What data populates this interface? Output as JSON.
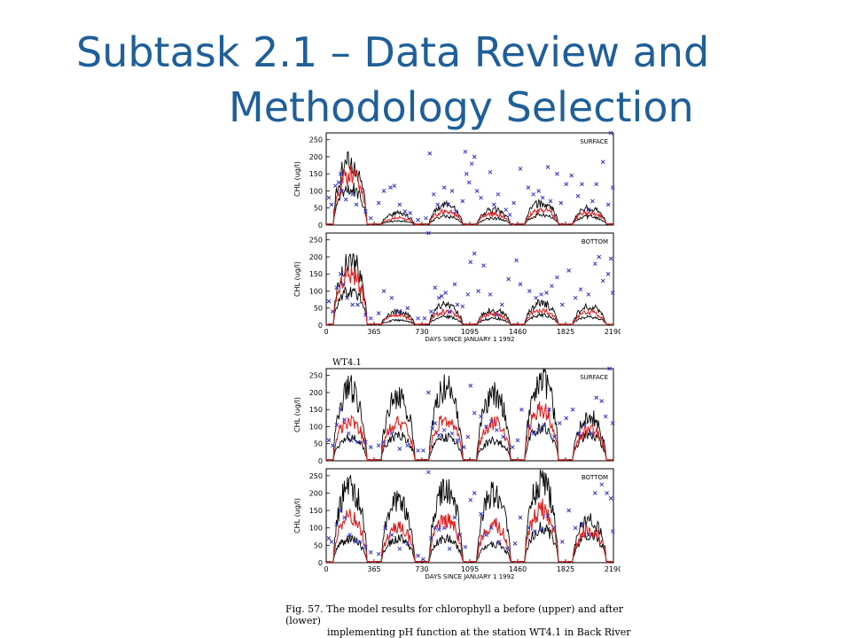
{
  "slide": {
    "title_line1": "Subtask 2.1 – Data Review and",
    "title_line2": "Methodology Selection",
    "caption_line1": "Fig. 57. The model results for chlorophyll a before (upper) and after (lower)",
    "caption_line2": "implementing pH function at the station WT4.1 in Back River"
  },
  "chart_data": [
    {
      "type": "line",
      "group": "before",
      "panel_label": "SURFACE",
      "ylabel": "CHL (ug/l)",
      "ylim": [
        0,
        270
      ],
      "yticks": [
        0,
        50,
        100,
        150,
        200,
        250
      ],
      "xlim": [
        0,
        2190
      ],
      "xticks": [
        0,
        365,
        730,
        1095,
        1460,
        1825,
        2190
      ],
      "tick_labels_shown": false,
      "colors": {
        "mean": "#e02020",
        "envelope": "#000000",
        "observed": "#3333cc"
      },
      "annual_peaks": {
        "max": [
          190,
          35,
          60,
          45,
          65,
          50
        ],
        "mean": [
          150,
          22,
          40,
          32,
          45,
          38
        ],
        "min": [
          110,
          12,
          25,
          20,
          30,
          25
        ]
      },
      "observations": [
        [
          20,
          80
        ],
        [
          40,
          60
        ],
        [
          70,
          115
        ],
        [
          95,
          125
        ],
        [
          110,
          150
        ],
        [
          120,
          100
        ],
        [
          150,
          75
        ],
        [
          200,
          90
        ],
        [
          230,
          60
        ],
        [
          300,
          40
        ],
        [
          340,
          20
        ],
        [
          400,
          65
        ],
        [
          440,
          100
        ],
        [
          490,
          110
        ],
        [
          520,
          115
        ],
        [
          560,
          60
        ],
        [
          600,
          40
        ],
        [
          640,
          35
        ],
        [
          700,
          15
        ],
        [
          760,
          20
        ],
        [
          790,
          210
        ],
        [
          820,
          90
        ],
        [
          850,
          60
        ],
        [
          900,
          110
        ],
        [
          930,
          60
        ],
        [
          960,
          100
        ],
        [
          990,
          40
        ],
        [
          1040,
          70
        ],
        [
          1060,
          215
        ],
        [
          1070,
          150
        ],
        [
          1090,
          125
        ],
        [
          1110,
          180
        ],
        [
          1130,
          200
        ],
        [
          1150,
          100
        ],
        [
          1180,
          80
        ],
        [
          1250,
          155
        ],
        [
          1280,
          60
        ],
        [
          1310,
          90
        ],
        [
          1370,
          45
        ],
        [
          1400,
          30
        ],
        [
          1430,
          65
        ],
        [
          1480,
          165
        ],
        [
          1540,
          110
        ],
        [
          1580,
          90
        ],
        [
          1620,
          100
        ],
        [
          1650,
          80
        ],
        [
          1690,
          170
        ],
        [
          1710,
          70
        ],
        [
          1760,
          150
        ],
        [
          1790,
          65
        ],
        [
          1830,
          120
        ],
        [
          1870,
          145
        ],
        [
          1920,
          85
        ],
        [
          1950,
          120
        ],
        [
          2000,
          45
        ],
        [
          2030,
          70
        ],
        [
          2060,
          120
        ],
        [
          2110,
          185
        ],
        [
          2150,
          60
        ],
        [
          2170,
          270
        ],
        [
          2185,
          110
        ]
      ]
    },
    {
      "type": "line",
      "group": "before",
      "panel_label": "BOTTOM",
      "ylabel": "CHL (ug/l)",
      "ylim": [
        0,
        270
      ],
      "yticks": [
        0,
        50,
        100,
        150,
        200,
        250
      ],
      "xlim": [
        0,
        2190
      ],
      "xticks": [
        0,
        365,
        730,
        1095,
        1460,
        1825,
        2190
      ],
      "xtick_labels": [
        "0",
        "365",
        "730",
        "1095",
        "1460",
        "1825",
        "2190"
      ],
      "xlabel": "DAYS SINCE JANUARY 1 1992",
      "colors": {
        "mean": "#e02020",
        "envelope": "#000000",
        "observed": "#3333cc"
      },
      "annual_peaks": {
        "max": [
          195,
          40,
          60,
          45,
          65,
          55
        ],
        "mean": [
          150,
          28,
          40,
          32,
          45,
          38
        ],
        "min": [
          105,
          15,
          25,
          20,
          30,
          25
        ]
      },
      "observations": [
        [
          20,
          70
        ],
        [
          50,
          40
        ],
        [
          80,
          110
        ],
        [
          110,
          150
        ],
        [
          130,
          120
        ],
        [
          160,
          80
        ],
        [
          200,
          60
        ],
        [
          240,
          60
        ],
        [
          300,
          30
        ],
        [
          340,
          20
        ],
        [
          400,
          35
        ],
        [
          440,
          100
        ],
        [
          500,
          80
        ],
        [
          560,
          40
        ],
        [
          620,
          50
        ],
        [
          700,
          20
        ],
        [
          750,
          20
        ],
        [
          780,
          270
        ],
        [
          800,
          40
        ],
        [
          830,
          110
        ],
        [
          860,
          80
        ],
        [
          880,
          85
        ],
        [
          910,
          95
        ],
        [
          940,
          40
        ],
        [
          980,
          120
        ],
        [
          1000,
          60
        ],
        [
          1040,
          55
        ],
        [
          1080,
          90
        ],
        [
          1100,
          185
        ],
        [
          1130,
          210
        ],
        [
          1160,
          100
        ],
        [
          1200,
          175
        ],
        [
          1250,
          90
        ],
        [
          1300,
          30
        ],
        [
          1340,
          60
        ],
        [
          1390,
          135
        ],
        [
          1450,
          190
        ],
        [
          1480,
          120
        ],
        [
          1550,
          100
        ],
        [
          1600,
          80
        ],
        [
          1640,
          90
        ],
        [
          1680,
          95
        ],
        [
          1720,
          115
        ],
        [
          1760,
          140
        ],
        [
          1800,
          60
        ],
        [
          1850,
          160
        ],
        [
          1900,
          80
        ],
        [
          1940,
          105
        ],
        [
          2000,
          90
        ],
        [
          2050,
          180
        ],
        [
          2080,
          200
        ],
        [
          2110,
          130
        ],
        [
          2150,
          150
        ],
        [
          2170,
          195
        ],
        [
          2185,
          95
        ]
      ]
    },
    {
      "type": "line",
      "group": "after",
      "station_label": "WT4.1",
      "panel_label": "SURFACE",
      "ylabel": "CHL (ug/l)",
      "ylim": [
        0,
        270
      ],
      "yticks": [
        0,
        50,
        100,
        150,
        200,
        250
      ],
      "xlim": [
        0,
        2190
      ],
      "xticks": [
        0,
        365,
        730,
        1095,
        1460,
        1825,
        2190
      ],
      "tick_labels_shown": false,
      "colors": {
        "mean": "#e02020",
        "envelope": "#000000",
        "observed": "#3333cc"
      },
      "annual_peaks": {
        "max": [
          210,
          190,
          215,
          200,
          235,
          130,
          165
        ],
        "mean": [
          120,
          110,
          120,
          110,
          155,
          95,
          120
        ],
        "min": [
          70,
          75,
          70,
          60,
          100,
          80,
          90
        ]
      },
      "observations": [
        [
          20,
          60
        ],
        [
          50,
          45
        ],
        [
          80,
          105
        ],
        [
          110,
          150
        ],
        [
          140,
          120
        ],
        [
          170,
          80
        ],
        [
          190,
          60
        ],
        [
          240,
          55
        ],
        [
          300,
          55
        ],
        [
          340,
          40
        ],
        [
          400,
          45
        ],
        [
          440,
          55
        ],
        [
          500,
          80
        ],
        [
          560,
          35
        ],
        [
          620,
          45
        ],
        [
          700,
          30
        ],
        [
          740,
          30
        ],
        [
          780,
          200
        ],
        [
          810,
          95
        ],
        [
          830,
          110
        ],
        [
          860,
          75
        ],
        [
          900,
          90
        ],
        [
          960,
          80
        ],
        [
          1000,
          60
        ],
        [
          1050,
          40
        ],
        [
          1080,
          70
        ],
        [
          1100,
          220
        ],
        [
          1130,
          140
        ],
        [
          1180,
          130
        ],
        [
          1220,
          100
        ],
        [
          1260,
          115
        ],
        [
          1300,
          90
        ],
        [
          1350,
          70
        ],
        [
          1420,
          40
        ],
        [
          1460,
          60
        ],
        [
          1490,
          150
        ],
        [
          1540,
          100
        ],
        [
          1580,
          80
        ],
        [
          1620,
          90
        ],
        [
          1660,
          105
        ],
        [
          1700,
          150
        ],
        [
          1740,
          70
        ],
        [
          1780,
          110
        ],
        [
          1830,
          125
        ],
        [
          1880,
          150
        ],
        [
          1930,
          80
        ],
        [
          1970,
          105
        ],
        [
          2020,
          80
        ],
        [
          2060,
          185
        ],
        [
          2100,
          175
        ],
        [
          2130,
          130
        ],
        [
          2160,
          270
        ],
        [
          2185,
          110
        ]
      ]
    },
    {
      "type": "line",
      "group": "after",
      "panel_label": "BOTTOM",
      "ylabel": "CHL (ug/l)",
      "ylim": [
        0,
        270
      ],
      "yticks": [
        0,
        50,
        100,
        150,
        200,
        250
      ],
      "xlim": [
        0,
        2190
      ],
      "xticks": [
        0,
        365,
        730,
        1095,
        1460,
        1825,
        2190
      ],
      "xtick_labels": [
        "0",
        "365",
        "730",
        "1095",
        "1460",
        "1825",
        "2190"
      ],
      "xlabel": "DAYS SINCE JANUARY 1 1992",
      "colors": {
        "mean": "#e02020",
        "envelope": "#000000",
        "observed": "#3333cc"
      },
      "annual_peaks": {
        "max": [
          220,
          180,
          215,
          200,
          230,
          125,
          165
        ],
        "mean": [
          130,
          105,
          125,
          110,
          155,
          95,
          120
        ],
        "min": [
          70,
          70,
          70,
          55,
          100,
          80,
          90
        ]
      },
      "observations": [
        [
          20,
          70
        ],
        [
          40,
          60
        ],
        [
          80,
          110
        ],
        [
          110,
          150
        ],
        [
          140,
          130
        ],
        [
          180,
          80
        ],
        [
          220,
          60
        ],
        [
          260,
          60
        ],
        [
          300,
          45
        ],
        [
          340,
          30
        ],
        [
          400,
          25
        ],
        [
          450,
          100
        ],
        [
          500,
          80
        ],
        [
          560,
          40
        ],
        [
          620,
          55
        ],
        [
          700,
          20
        ],
        [
          740,
          10
        ],
        [
          780,
          260
        ],
        [
          800,
          70
        ],
        [
          830,
          100
        ],
        [
          860,
          95
        ],
        [
          900,
          100
        ],
        [
          940,
          40
        ],
        [
          980,
          130
        ],
        [
          1020,
          80
        ],
        [
          1060,
          45
        ],
        [
          1100,
          180
        ],
        [
          1130,
          200
        ],
        [
          1180,
          140
        ],
        [
          1220,
          80
        ],
        [
          1260,
          100
        ],
        [
          1320,
          60
        ],
        [
          1380,
          40
        ],
        [
          1440,
          55
        ],
        [
          1480,
          130
        ],
        [
          1540,
          100
        ],
        [
          1590,
          90
        ],
        [
          1640,
          95
        ],
        [
          1690,
          135
        ],
        [
          1740,
          100
        ],
        [
          1800,
          60
        ],
        [
          1850,
          150
        ],
        [
          1900,
          100
        ],
        [
          1950,
          110
        ],
        [
          2000,
          80
        ],
        [
          2050,
          200
        ],
        [
          2100,
          225
        ],
        [
          2140,
          200
        ],
        [
          2170,
          185
        ],
        [
          2185,
          90
        ]
      ]
    }
  ]
}
